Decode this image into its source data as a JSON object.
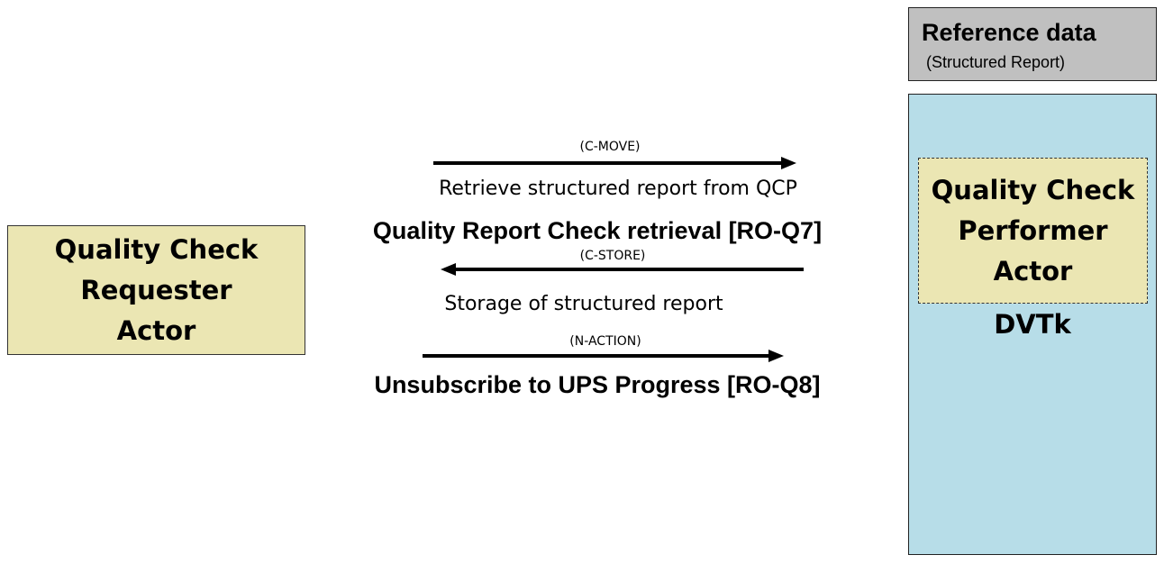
{
  "requester": {
    "lines": [
      "Quality Check",
      "Requester",
      "Actor"
    ]
  },
  "reference": {
    "title": "Reference data",
    "subtitle": "(Structured Report)"
  },
  "performer": {
    "lines": [
      "Quality Check",
      "Performer",
      "Actor"
    ],
    "system_label": "DVTk"
  },
  "transactions": [
    {
      "protocol": "(C-MOVE)",
      "direction": "to-performer",
      "description": "Retrieve structured report from QCP",
      "name": "Quality Report Check retrieval [RO-Q7]"
    },
    {
      "protocol": "(C-STORE)",
      "direction": "to-requester",
      "description": "Storage of structured report",
      "name": ""
    },
    {
      "protocol": "(N-ACTION)",
      "direction": "to-performer",
      "description": "",
      "name": "Unsubscribe to UPS Progress [RO-Q8]"
    }
  ],
  "colors": {
    "actor_fill": "#ebe6b3",
    "reference_fill": "#c0c0c0",
    "dvtk_fill": "#b7dde8",
    "arrow": "#000000"
  }
}
